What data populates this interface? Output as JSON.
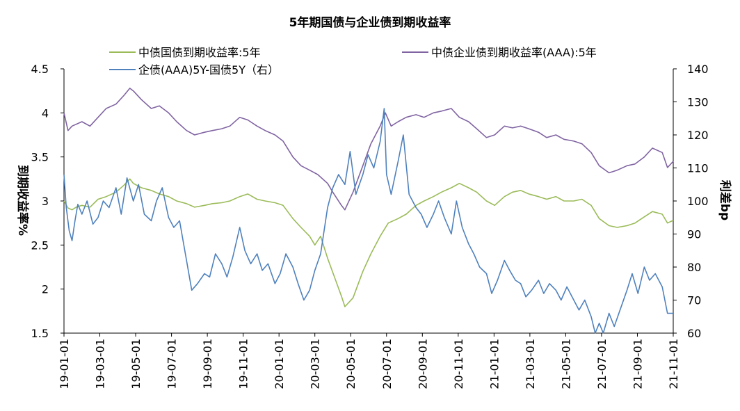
{
  "chart_data": {
    "type": "line",
    "title": "5年期国债与企业债到期收益率",
    "ylabel_left": "到期收益率%",
    "ylabel_right": "利差bp",
    "left_axis": {
      "min": 1.5,
      "max": 4.5,
      "ticks": [
        "1.5",
        "2",
        "2.5",
        "3",
        "3.5",
        "4",
        "4.5"
      ]
    },
    "right_axis": {
      "min": 60,
      "max": 140,
      "ticks": [
        "60",
        "70",
        "80",
        "90",
        "100",
        "110",
        "120",
        "130",
        "140"
      ]
    },
    "x_ticks": [
      "19-01-01",
      "19-03-01",
      "19-05-01",
      "19-07-01",
      "19-09-01",
      "19-11-01",
      "20-01-01",
      "20-03-01",
      "20-05-01",
      "20-07-01",
      "20-09-01",
      "20-11-01",
      "21-01-01",
      "21-03-01",
      "21-05-01",
      "21-07-01",
      "21-09-01",
      "21-11-01"
    ],
    "x_range": [
      "2019-01-01",
      "2021-11-20"
    ],
    "legend": [
      "中债国债到期收益率:5年",
      "中债企业债到期收益率(AAA):5年",
      "企债(AAA)5Y-国债5Y（右）"
    ],
    "grid": false,
    "series": [
      {
        "name": "中债国债到期收益率:5年",
        "color": "#9BBB59",
        "axis": "left",
        "points": [
          [
            "2019-01-01",
            3.0
          ],
          [
            "2019-01-08",
            2.92
          ],
          [
            "2019-01-15",
            2.9
          ],
          [
            "2019-01-22",
            2.93
          ],
          [
            "2019-02-01",
            2.95
          ],
          [
            "2019-02-15",
            2.93
          ],
          [
            "2019-03-01",
            3.02
          ],
          [
            "2019-03-15",
            3.05
          ],
          [
            "2019-04-01",
            3.1
          ],
          [
            "2019-04-15",
            3.18
          ],
          [
            "2019-04-25",
            3.25
          ],
          [
            "2019-05-01",
            3.2
          ],
          [
            "2019-05-15",
            3.15
          ],
          [
            "2019-06-01",
            3.12
          ],
          [
            "2019-06-15",
            3.08
          ],
          [
            "2019-07-01",
            3.05
          ],
          [
            "2019-07-15",
            3.0
          ],
          [
            "2019-08-01",
            2.97
          ],
          [
            "2019-08-15",
            2.93
          ],
          [
            "2019-09-01",
            2.95
          ],
          [
            "2019-09-15",
            2.97
          ],
          [
            "2019-10-01",
            2.98
          ],
          [
            "2019-10-15",
            3.0
          ],
          [
            "2019-11-01",
            3.05
          ],
          [
            "2019-11-15",
            3.08
          ],
          [
            "2019-12-01",
            3.02
          ],
          [
            "2019-12-15",
            3.0
          ],
          [
            "2020-01-01",
            2.98
          ],
          [
            "2020-01-15",
            2.95
          ],
          [
            "2020-02-01",
            2.8
          ],
          [
            "2020-02-15",
            2.7
          ],
          [
            "2020-03-01",
            2.6
          ],
          [
            "2020-03-10",
            2.5
          ],
          [
            "2020-03-20",
            2.6
          ],
          [
            "2020-04-01",
            2.35
          ],
          [
            "2020-04-15",
            2.1
          ],
          [
            "2020-04-25",
            1.92
          ],
          [
            "2020-05-01",
            1.8
          ],
          [
            "2020-05-15",
            1.9
          ],
          [
            "2020-06-01",
            2.2
          ],
          [
            "2020-06-15",
            2.4
          ],
          [
            "2020-07-01",
            2.6
          ],
          [
            "2020-07-15",
            2.75
          ],
          [
            "2020-08-01",
            2.8
          ],
          [
            "2020-08-15",
            2.85
          ],
          [
            "2020-09-01",
            2.95
          ],
          [
            "2020-09-15",
            3.0
          ],
          [
            "2020-10-01",
            3.05
          ],
          [
            "2020-10-15",
            3.1
          ],
          [
            "2020-11-01",
            3.15
          ],
          [
            "2020-11-15",
            3.2
          ],
          [
            "2020-12-01",
            3.15
          ],
          [
            "2020-12-15",
            3.1
          ],
          [
            "2021-01-01",
            3.0
          ],
          [
            "2021-01-15",
            2.95
          ],
          [
            "2021-02-01",
            3.05
          ],
          [
            "2021-02-15",
            3.1
          ],
          [
            "2021-03-01",
            3.12
          ],
          [
            "2021-03-15",
            3.08
          ],
          [
            "2021-04-01",
            3.05
          ],
          [
            "2021-04-15",
            3.02
          ],
          [
            "2021-05-01",
            3.05
          ],
          [
            "2021-05-15",
            3.0
          ],
          [
            "2021-06-01",
            3.0
          ],
          [
            "2021-06-15",
            3.02
          ],
          [
            "2021-07-01",
            2.95
          ],
          [
            "2021-07-15",
            2.8
          ],
          [
            "2021-08-01",
            2.72
          ],
          [
            "2021-08-15",
            2.7
          ],
          [
            "2021-09-01",
            2.72
          ],
          [
            "2021-09-15",
            2.75
          ],
          [
            "2021-10-01",
            2.82
          ],
          [
            "2021-10-15",
            2.88
          ],
          [
            "2021-11-01",
            2.85
          ],
          [
            "2021-11-10",
            2.75
          ],
          [
            "2021-11-20",
            2.78
          ]
        ]
      },
      {
        "name": "中债企业债到期收益率(AAA):5年",
        "color": "#8064A2",
        "axis": "left",
        "points": [
          [
            "2019-01-01",
            4.0
          ],
          [
            "2019-01-08",
            3.8
          ],
          [
            "2019-01-15",
            3.85
          ],
          [
            "2019-02-01",
            3.9
          ],
          [
            "2019-02-15",
            3.85
          ],
          [
            "2019-03-01",
            3.95
          ],
          [
            "2019-03-15",
            4.05
          ],
          [
            "2019-04-01",
            4.1
          ],
          [
            "2019-04-15",
            4.2
          ],
          [
            "2019-04-25",
            4.28
          ],
          [
            "2019-05-01",
            4.25
          ],
          [
            "2019-05-15",
            4.15
          ],
          [
            "2019-06-01",
            4.05
          ],
          [
            "2019-06-15",
            4.08
          ],
          [
            "2019-07-01",
            4.0
          ],
          [
            "2019-07-15",
            3.9
          ],
          [
            "2019-08-01",
            3.8
          ],
          [
            "2019-08-15",
            3.75
          ],
          [
            "2019-09-01",
            3.78
          ],
          [
            "2019-09-15",
            3.8
          ],
          [
            "2019-10-01",
            3.82
          ],
          [
            "2019-10-15",
            3.85
          ],
          [
            "2019-11-01",
            3.95
          ],
          [
            "2019-11-15",
            3.92
          ],
          [
            "2019-12-01",
            3.85
          ],
          [
            "2019-12-15",
            3.8
          ],
          [
            "2020-01-01",
            3.75
          ],
          [
            "2020-01-15",
            3.68
          ],
          [
            "2020-02-01",
            3.5
          ],
          [
            "2020-02-15",
            3.4
          ],
          [
            "2020-03-01",
            3.35
          ],
          [
            "2020-03-15",
            3.3
          ],
          [
            "2020-04-01",
            3.2
          ],
          [
            "2020-04-10",
            3.1
          ],
          [
            "2020-04-25",
            2.95
          ],
          [
            "2020-05-01",
            2.9
          ],
          [
            "2020-05-15",
            3.1
          ],
          [
            "2020-06-01",
            3.4
          ],
          [
            "2020-06-15",
            3.65
          ],
          [
            "2020-07-01",
            3.85
          ],
          [
            "2020-07-10",
            4.0
          ],
          [
            "2020-07-20",
            3.85
          ],
          [
            "2020-08-01",
            3.9
          ],
          [
            "2020-08-15",
            3.95
          ],
          [
            "2020-09-01",
            3.98
          ],
          [
            "2020-09-15",
            3.95
          ],
          [
            "2020-10-01",
            4.0
          ],
          [
            "2020-10-15",
            4.02
          ],
          [
            "2020-11-01",
            4.05
          ],
          [
            "2020-11-15",
            3.95
          ],
          [
            "2020-12-01",
            3.9
          ],
          [
            "2020-12-15",
            3.82
          ],
          [
            "2021-01-01",
            3.72
          ],
          [
            "2021-01-15",
            3.75
          ],
          [
            "2021-02-01",
            3.85
          ],
          [
            "2021-02-15",
            3.83
          ],
          [
            "2021-03-01",
            3.85
          ],
          [
            "2021-03-15",
            3.82
          ],
          [
            "2021-04-01",
            3.78
          ],
          [
            "2021-04-15",
            3.72
          ],
          [
            "2021-05-01",
            3.75
          ],
          [
            "2021-05-15",
            3.7
          ],
          [
            "2021-06-01",
            3.68
          ],
          [
            "2021-06-15",
            3.65
          ],
          [
            "2021-07-01",
            3.55
          ],
          [
            "2021-07-15",
            3.4
          ],
          [
            "2021-08-01",
            3.32
          ],
          [
            "2021-08-15",
            3.35
          ],
          [
            "2021-09-01",
            3.4
          ],
          [
            "2021-09-15",
            3.42
          ],
          [
            "2021-10-01",
            3.5
          ],
          [
            "2021-10-15",
            3.6
          ],
          [
            "2021-11-01",
            3.55
          ],
          [
            "2021-11-10",
            3.38
          ],
          [
            "2021-11-20",
            3.45
          ]
        ]
      },
      {
        "name": "企债(AAA)5Y-国债5Y（右）",
        "color": "#4F81BD",
        "axis": "right",
        "points": [
          [
            "2019-01-01",
            108
          ],
          [
            "2019-01-05",
            98
          ],
          [
            "2019-01-10",
            91
          ],
          [
            "2019-01-15",
            88
          ],
          [
            "2019-01-20",
            94
          ],
          [
            "2019-01-25",
            99
          ],
          [
            "2019-02-01",
            96
          ],
          [
            "2019-02-10",
            100
          ],
          [
            "2019-02-20",
            93
          ],
          [
            "2019-03-01",
            95
          ],
          [
            "2019-03-10",
            100
          ],
          [
            "2019-03-20",
            98
          ],
          [
            "2019-04-01",
            104
          ],
          [
            "2019-04-10",
            96
          ],
          [
            "2019-04-20",
            107
          ],
          [
            "2019-05-01",
            100
          ],
          [
            "2019-05-10",
            105
          ],
          [
            "2019-05-20",
            96
          ],
          [
            "2019-06-01",
            94
          ],
          [
            "2019-06-10",
            100
          ],
          [
            "2019-06-20",
            104
          ],
          [
            "2019-07-01",
            95
          ],
          [
            "2019-07-10",
            92
          ],
          [
            "2019-07-20",
            94
          ],
          [
            "2019-08-01",
            82
          ],
          [
            "2019-08-10",
            73
          ],
          [
            "2019-08-20",
            75
          ],
          [
            "2019-09-01",
            78
          ],
          [
            "2019-09-10",
            77
          ],
          [
            "2019-09-20",
            84
          ],
          [
            "2019-10-01",
            81
          ],
          [
            "2019-10-10",
            77
          ],
          [
            "2019-10-20",
            83
          ],
          [
            "2019-11-01",
            92
          ],
          [
            "2019-11-10",
            85
          ],
          [
            "2019-11-20",
            81
          ],
          [
            "2019-12-01",
            84
          ],
          [
            "2019-12-10",
            79
          ],
          [
            "2019-12-20",
            81
          ],
          [
            "2020-01-01",
            75
          ],
          [
            "2020-01-10",
            78
          ],
          [
            "2020-01-20",
            84
          ],
          [
            "2020-02-01",
            80
          ],
          [
            "2020-02-10",
            75
          ],
          [
            "2020-02-20",
            70
          ],
          [
            "2020-03-01",
            73
          ],
          [
            "2020-03-10",
            79
          ],
          [
            "2020-03-20",
            84
          ],
          [
            "2020-04-01",
            98
          ],
          [
            "2020-04-10",
            104
          ],
          [
            "2020-04-20",
            108
          ],
          [
            "2020-05-01",
            105
          ],
          [
            "2020-05-10",
            115
          ],
          [
            "2020-05-20",
            102
          ],
          [
            "2020-06-01",
            108
          ],
          [
            "2020-06-10",
            114
          ],
          [
            "2020-06-20",
            110
          ],
          [
            "2020-07-01",
            118
          ],
          [
            "2020-07-08",
            128
          ],
          [
            "2020-07-12",
            108
          ],
          [
            "2020-07-20",
            102
          ],
          [
            "2020-08-01",
            112
          ],
          [
            "2020-08-10",
            120
          ],
          [
            "2020-08-20",
            102
          ],
          [
            "2020-09-01",
            98
          ],
          [
            "2020-09-10",
            96
          ],
          [
            "2020-09-20",
            92
          ],
          [
            "2020-10-01",
            96
          ],
          [
            "2020-10-10",
            100
          ],
          [
            "2020-10-20",
            95
          ],
          [
            "2020-11-01",
            90
          ],
          [
            "2020-11-10",
            100
          ],
          [
            "2020-11-20",
            92
          ],
          [
            "2020-12-01",
            87
          ],
          [
            "2020-12-10",
            84
          ],
          [
            "2020-12-20",
            80
          ],
          [
            "2021-01-01",
            78
          ],
          [
            "2021-01-10",
            72
          ],
          [
            "2021-01-20",
            76
          ],
          [
            "2021-02-01",
            82
          ],
          [
            "2021-02-10",
            79
          ],
          [
            "2021-02-20",
            76
          ],
          [
            "2021-03-01",
            75
          ],
          [
            "2021-03-10",
            71
          ],
          [
            "2021-03-20",
            73
          ],
          [
            "2021-04-01",
            76
          ],
          [
            "2021-04-10",
            72
          ],
          [
            "2021-04-20",
            75
          ],
          [
            "2021-05-01",
            73
          ],
          [
            "2021-05-10",
            70
          ],
          [
            "2021-05-20",
            74
          ],
          [
            "2021-06-01",
            70
          ],
          [
            "2021-06-10",
            67
          ],
          [
            "2021-06-20",
            70
          ],
          [
            "2021-07-01",
            65
          ],
          [
            "2021-07-08",
            60
          ],
          [
            "2021-07-15",
            63
          ],
          [
            "2021-07-22",
            60
          ],
          [
            "2021-08-01",
            66
          ],
          [
            "2021-08-10",
            62
          ],
          [
            "2021-08-20",
            67
          ],
          [
            "2021-09-01",
            73
          ],
          [
            "2021-09-10",
            78
          ],
          [
            "2021-09-20",
            72
          ],
          [
            "2021-10-01",
            80
          ],
          [
            "2021-10-10",
            76
          ],
          [
            "2021-10-20",
            78
          ],
          [
            "2021-11-01",
            74
          ],
          [
            "2021-11-10",
            66
          ],
          [
            "2021-11-20",
            66
          ]
        ]
      }
    ]
  }
}
